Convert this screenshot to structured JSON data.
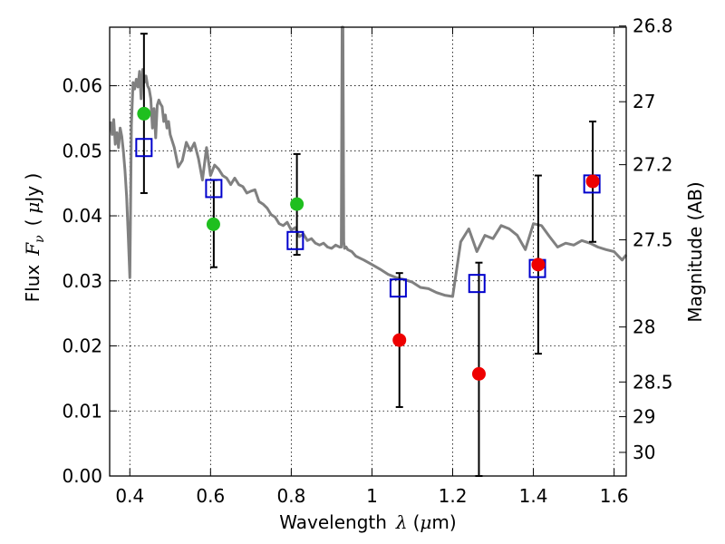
{
  "chart_data": {
    "type": "scatter",
    "title": "",
    "xlabel": "Wavelength",
    "xlabel_symbol": "λ",
    "xlabel_unit_open": "(",
    "xlabel_unit_mu": "μ",
    "xlabel_unit_rest": "m)",
    "ylabel": "Flux",
    "ylabel_symbol_F": "F",
    "ylabel_symbol_nu": "ν",
    "ylabel_unit_open": "(",
    "ylabel_unit_mu": "μ",
    "ylabel_unit_rest": "Jy )",
    "y2label": "Magnitude (AB)",
    "xlim": [
      0.35,
      1.63
    ],
    "ylim": [
      0.0,
      0.069
    ],
    "grid": true,
    "x_ticks": [
      {
        "value": 0.4,
        "label": "0.4"
      },
      {
        "value": 0.6,
        "label": "0.6"
      },
      {
        "value": 0.8,
        "label": "0.8"
      },
      {
        "value": 1.0,
        "label": "1"
      },
      {
        "value": 1.2,
        "label": "1.2"
      },
      {
        "value": 1.4,
        "label": "1.4"
      },
      {
        "value": 1.6,
        "label": "1.6"
      }
    ],
    "y_ticks": [
      {
        "value": 0.0,
        "label": "0.00"
      },
      {
        "value": 0.01,
        "label": "0.01"
      },
      {
        "value": 0.02,
        "label": "0.02"
      },
      {
        "value": 0.03,
        "label": "0.03"
      },
      {
        "value": 0.04,
        "label": "0.04"
      },
      {
        "value": 0.05,
        "label": "0.05"
      },
      {
        "value": 0.06,
        "label": "0.06"
      }
    ],
    "y2_ticks": [
      {
        "value": 26.8,
        "label": "26.8"
      },
      {
        "value": 27.0,
        "label": "27"
      },
      {
        "value": 27.2,
        "label": "27.2"
      },
      {
        "value": 27.5,
        "label": "27.5"
      },
      {
        "value": 28.0,
        "label": "28"
      },
      {
        "value": 28.5,
        "label": "28.5"
      },
      {
        "value": 29.0,
        "label": "29"
      },
      {
        "value": 30.0,
        "label": "30"
      }
    ],
    "model_spectrum": {
      "color": "#808080",
      "x": [
        0.352,
        0.356,
        0.36,
        0.364,
        0.368,
        0.372,
        0.376,
        0.38,
        0.384,
        0.388,
        0.392,
        0.396,
        0.4,
        0.404,
        0.408,
        0.412,
        0.416,
        0.42,
        0.424,
        0.428,
        0.432,
        0.436,
        0.44,
        0.444,
        0.448,
        0.452,
        0.456,
        0.46,
        0.464,
        0.468,
        0.472,
        0.476,
        0.48,
        0.484,
        0.488,
        0.492,
        0.496,
        0.5,
        0.51,
        0.52,
        0.53,
        0.54,
        0.55,
        0.56,
        0.57,
        0.58,
        0.59,
        0.6,
        0.61,
        0.62,
        0.63,
        0.64,
        0.65,
        0.66,
        0.67,
        0.68,
        0.69,
        0.7,
        0.71,
        0.72,
        0.73,
        0.74,
        0.75,
        0.76,
        0.77,
        0.78,
        0.79,
        0.8,
        0.81,
        0.82,
        0.83,
        0.84,
        0.85,
        0.86,
        0.87,
        0.88,
        0.89,
        0.9,
        0.91,
        0.92,
        0.924,
        0.926,
        0.928,
        0.93,
        0.932,
        0.936,
        0.94,
        0.95,
        0.96,
        0.97,
        0.98,
        1.0,
        1.02,
        1.04,
        1.06,
        1.08,
        1.1,
        1.12,
        1.14,
        1.16,
        1.18,
        1.2,
        1.22,
        1.24,
        1.26,
        1.28,
        1.3,
        1.32,
        1.34,
        1.36,
        1.38,
        1.4,
        1.42,
        1.44,
        1.46,
        1.48,
        1.5,
        1.52,
        1.54,
        1.56,
        1.58,
        1.6,
        1.62,
        1.63
      ],
      "y": [
        0.0545,
        0.0525,
        0.0548,
        0.051,
        0.0528,
        0.0505,
        0.0535,
        0.0522,
        0.05,
        0.047,
        0.043,
        0.037,
        0.0305,
        0.054,
        0.0605,
        0.0595,
        0.061,
        0.0598,
        0.0622,
        0.058,
        0.0625,
        0.0605,
        0.0615,
        0.06,
        0.0595,
        0.058,
        0.0535,
        0.0565,
        0.052,
        0.057,
        0.0578,
        0.0572,
        0.0568,
        0.0545,
        0.0555,
        0.0535,
        0.0545,
        0.0525,
        0.0505,
        0.0475,
        0.0485,
        0.0513,
        0.05,
        0.0512,
        0.0488,
        0.0455,
        0.0505,
        0.0462,
        0.0478,
        0.0472,
        0.0462,
        0.0458,
        0.0448,
        0.0458,
        0.0448,
        0.0445,
        0.0435,
        0.0438,
        0.044,
        0.0422,
        0.0418,
        0.0412,
        0.0402,
        0.0398,
        0.0388,
        0.0385,
        0.039,
        0.0378,
        0.0382,
        0.0368,
        0.0372,
        0.0362,
        0.0365,
        0.0358,
        0.0355,
        0.0358,
        0.0352,
        0.035,
        0.0355,
        0.0352,
        0.0352,
        0.0693,
        0.0693,
        0.036,
        0.035,
        0.0352,
        0.0348,
        0.0345,
        0.0338,
        0.0335,
        0.0332,
        0.0325,
        0.0318,
        0.031,
        0.0305,
        0.0302,
        0.0298,
        0.029,
        0.0288,
        0.0282,
        0.0278,
        0.0276,
        0.036,
        0.038,
        0.0345,
        0.037,
        0.0365,
        0.0385,
        0.038,
        0.037,
        0.0348,
        0.0388,
        0.0385,
        0.0368,
        0.0352,
        0.0358,
        0.0355,
        0.0362,
        0.0358,
        0.0352,
        0.0348,
        0.0345,
        0.0332,
        0.034
      ]
    },
    "series": [
      {
        "marker": "square",
        "color": "#0000cc",
        "x": [
          0.435,
          0.608,
          0.81,
          1.065,
          1.26,
          1.41,
          1.545
        ],
        "y": [
          0.0505,
          0.0442,
          0.0362,
          0.0289,
          0.0296,
          0.0319,
          0.0449
        ]
      },
      {
        "marker": "circle",
        "color": "#1fbf1f",
        "x": [
          0.435,
          0.607,
          0.814
        ],
        "y": [
          0.0557,
          0.0387,
          0.0418
        ]
      },
      {
        "marker": "circle",
        "color": "#ee0000",
        "x": [
          1.068,
          1.265,
          1.412,
          1.547
        ],
        "y": [
          0.0209,
          0.0157,
          0.0325,
          0.0453
        ]
      }
    ],
    "error_bars": [
      {
        "x": 0.435,
        "y_low": 0.0435,
        "y_high": 0.068
      },
      {
        "x": 0.608,
        "y_low": 0.0321,
        "y_high": 0.0455
      },
      {
        "x": 0.814,
        "y_low": 0.034,
        "y_high": 0.0495
      },
      {
        "x": 1.068,
        "y_low": 0.0106,
        "y_high": 0.0312
      },
      {
        "x": 1.265,
        "y_low": 0.0,
        "y_high": 0.0328
      },
      {
        "x": 1.412,
        "y_low": 0.0188,
        "y_high": 0.0462
      },
      {
        "x": 1.547,
        "y_low": 0.036,
        "y_high": 0.0545
      }
    ]
  }
}
